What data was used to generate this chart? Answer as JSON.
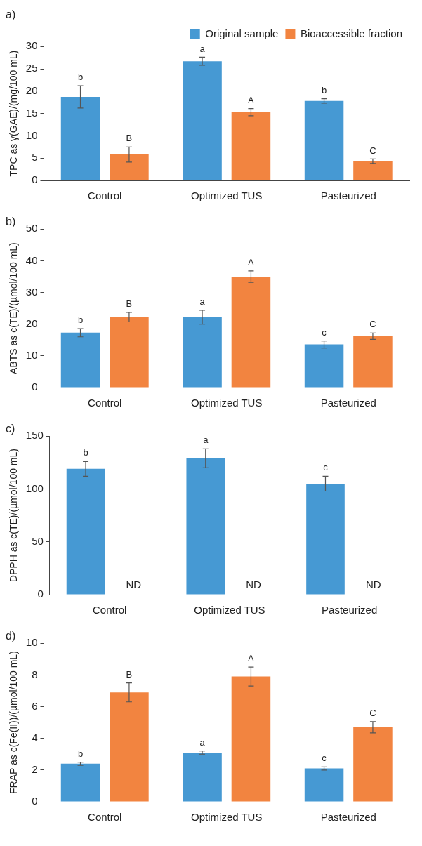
{
  "chart_data": [
    {
      "type": "bar",
      "title": "a)",
      "ylabel": "TPC as γ(GAE)/(mg/100 mL)",
      "categories": [
        "Control",
        "Optimized TUS",
        "Pasteurized"
      ],
      "ylim": [
        0,
        30
      ],
      "yticks": [
        0,
        5,
        10,
        15,
        20,
        25,
        30
      ],
      "grid": false,
      "legend": "top right",
      "series": [
        {
          "name": "Original sample",
          "color": "#4699d3",
          "values": [
            18.7,
            26.7,
            17.8
          ],
          "errors": [
            2.5,
            0.9,
            0.5
          ],
          "value_labels": [
            "b",
            "a",
            "b"
          ]
        },
        {
          "name": "Bioaccessible fraction",
          "color": "#f28440",
          "values": [
            5.8,
            15.3,
            4.3
          ],
          "errors": [
            1.7,
            0.8,
            0.5
          ],
          "value_labels": [
            "B",
            "A",
            "C"
          ]
        }
      ]
    },
    {
      "type": "bar",
      "title": "b)",
      "ylabel": "ABTS as c(TE)/(µmol/100 mL)",
      "categories": [
        "Control",
        "Optimized TUS",
        "Pasteurized"
      ],
      "ylim": [
        0,
        50
      ],
      "yticks": [
        0,
        10,
        20,
        30,
        40,
        50
      ],
      "grid": false,
      "series": [
        {
          "color": "#4699d3",
          "values": [
            17.3,
            22.2,
            13.6
          ],
          "errors": [
            1.3,
            2.2,
            1.1
          ],
          "value_labels": [
            "b",
            "a",
            "c"
          ]
        },
        {
          "color": "#f28440",
          "values": [
            22.2,
            35.0,
            16.2
          ],
          "errors": [
            1.5,
            1.8,
            1.0
          ],
          "value_labels": [
            "B",
            "A",
            "C"
          ]
        }
      ]
    },
    {
      "type": "bar",
      "title": "c)",
      "ylabel": "DPPH as c(TE)/(µmol/100 mL)",
      "categories": [
        "Control",
        "Optimized TUS",
        "Pasteurized"
      ],
      "ylim": [
        0,
        150
      ],
      "yticks": [
        0,
        50,
        100,
        150
      ],
      "grid": false,
      "series": [
        {
          "color": "#4699d3",
          "values": [
            119,
            129,
            105
          ],
          "errors": [
            7,
            9,
            7
          ],
          "value_labels": [
            "b",
            "a",
            "c"
          ]
        },
        {
          "color": "#f28440",
          "values": [
            null,
            null,
            null
          ],
          "value_labels": [
            "ND",
            "ND",
            "ND"
          ]
        }
      ]
    },
    {
      "type": "bar",
      "title": "d)",
      "ylabel": "FRAP as c(Fe(II))/(µmol/100 mL)",
      "categories": [
        "Control",
        "Optimized TUS",
        "Pasteurized"
      ],
      "ylim": [
        0,
        10
      ],
      "yticks": [
        0,
        2,
        4,
        6,
        8,
        10
      ],
      "grid": false,
      "series": [
        {
          "color": "#4699d3",
          "values": [
            2.4,
            3.1,
            2.1
          ],
          "errors": [
            0.1,
            0.1,
            0.1
          ],
          "value_labels": [
            "b",
            "a",
            "c"
          ]
        },
        {
          "color": "#f28440",
          "values": [
            6.9,
            7.9,
            4.7
          ],
          "errors": [
            0.6,
            0.6,
            0.35
          ],
          "value_labels": [
            "B",
            "A",
            "C"
          ]
        }
      ]
    }
  ]
}
